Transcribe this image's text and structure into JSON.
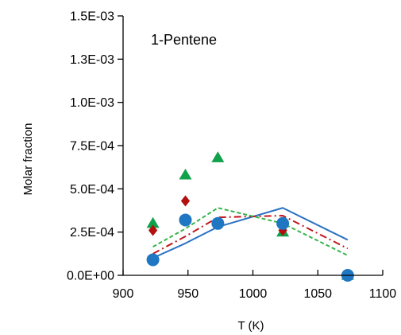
{
  "chart_data": {
    "type": "scatter",
    "annotation": "1-Pentene",
    "xlabel": "T (K)",
    "ylabel": "Molar fraction",
    "xlim": [
      900,
      1100
    ],
    "ylim": [
      0,
      0.0015
    ],
    "xticks": [
      900,
      950,
      1000,
      1050,
      1100
    ],
    "yticks": [
      0,
      0.00025,
      0.0005,
      0.00075,
      0.001,
      0.00125,
      0.0015
    ],
    "xtick_labels": [
      "900",
      "950",
      "1000",
      "1050",
      "1100"
    ],
    "ytick_labels": [
      "0.0E+00",
      "2.5E-04",
      "5.0E-04",
      "7.5E-04",
      "1.0E-03",
      "1.3E-03",
      "1.5E-03"
    ],
    "grid": false,
    "legend": "none",
    "series": [
      {
        "kind": "line",
        "style": "solid",
        "color": "#2a72c4",
        "x": [
          923,
          948,
          973,
          1023,
          1073
        ],
        "y": [
          0.0001,
          0.000185,
          0.00028,
          0.00039,
          0.000205
        ]
      },
      {
        "kind": "line",
        "style": "dash-dot",
        "color": "#c0161d",
        "x": [
          923,
          948,
          973,
          1023,
          1073
        ],
        "y": [
          0.000125,
          0.000225,
          0.000335,
          0.000345,
          0.000155
        ]
      },
      {
        "kind": "line",
        "style": "dashed",
        "color": "#34b54a",
        "x": [
          923,
          948,
          973,
          1023,
          1073
        ],
        "y": [
          0.000165,
          0.00027,
          0.00039,
          0.0003,
          0.000115
        ]
      },
      {
        "kind": "marker",
        "marker": "triangle",
        "color": "#10a14b",
        "x": [
          923,
          948,
          973,
          1023,
          1073
        ],
        "y": [
          0.0003,
          0.00058,
          0.00068,
          0.00025,
          0.0
        ]
      },
      {
        "kind": "marker",
        "marker": "diamond",
        "color": "#b30f0f",
        "x": [
          923,
          948,
          973,
          1023,
          1073
        ],
        "y": [
          0.00026,
          0.00043,
          0.0003,
          0.00026,
          0.0
        ]
      },
      {
        "kind": "marker",
        "marker": "circle",
        "color": "#1f76c2",
        "x": [
          923,
          948,
          973,
          1023,
          1073
        ],
        "y": [
          9e-05,
          0.00032,
          0.0003,
          0.0003,
          0.0
        ]
      }
    ]
  }
}
